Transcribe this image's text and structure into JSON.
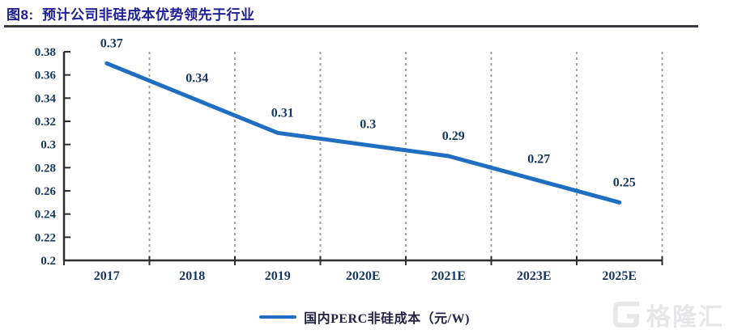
{
  "header": {
    "title": "图8:  预计公司非硅成本优势领先于行业"
  },
  "chart_data": {
    "type": "line",
    "categories": [
      "2017",
      "2018",
      "2019",
      "2020E",
      "2021E",
      "2023E",
      "2025E"
    ],
    "values": [
      0.37,
      0.34,
      0.31,
      0.3,
      0.29,
      0.27,
      0.25
    ],
    "title": "",
    "xlabel": "",
    "ylabel": "",
    "ylim": [
      0.2,
      0.38
    ],
    "ytick_step": 0.02,
    "grid": "vertical-dashed",
    "legend_position": "bottom",
    "legend": "国内PERC非硅成本（元/W)",
    "colors": {
      "line": "#1f6ec2",
      "tick_label": "#17375e",
      "data_label": "#17375e",
      "axis": "#2e2e2e",
      "gridline": "#9b9b9b"
    }
  },
  "watermark": {
    "text": "格隆汇"
  }
}
